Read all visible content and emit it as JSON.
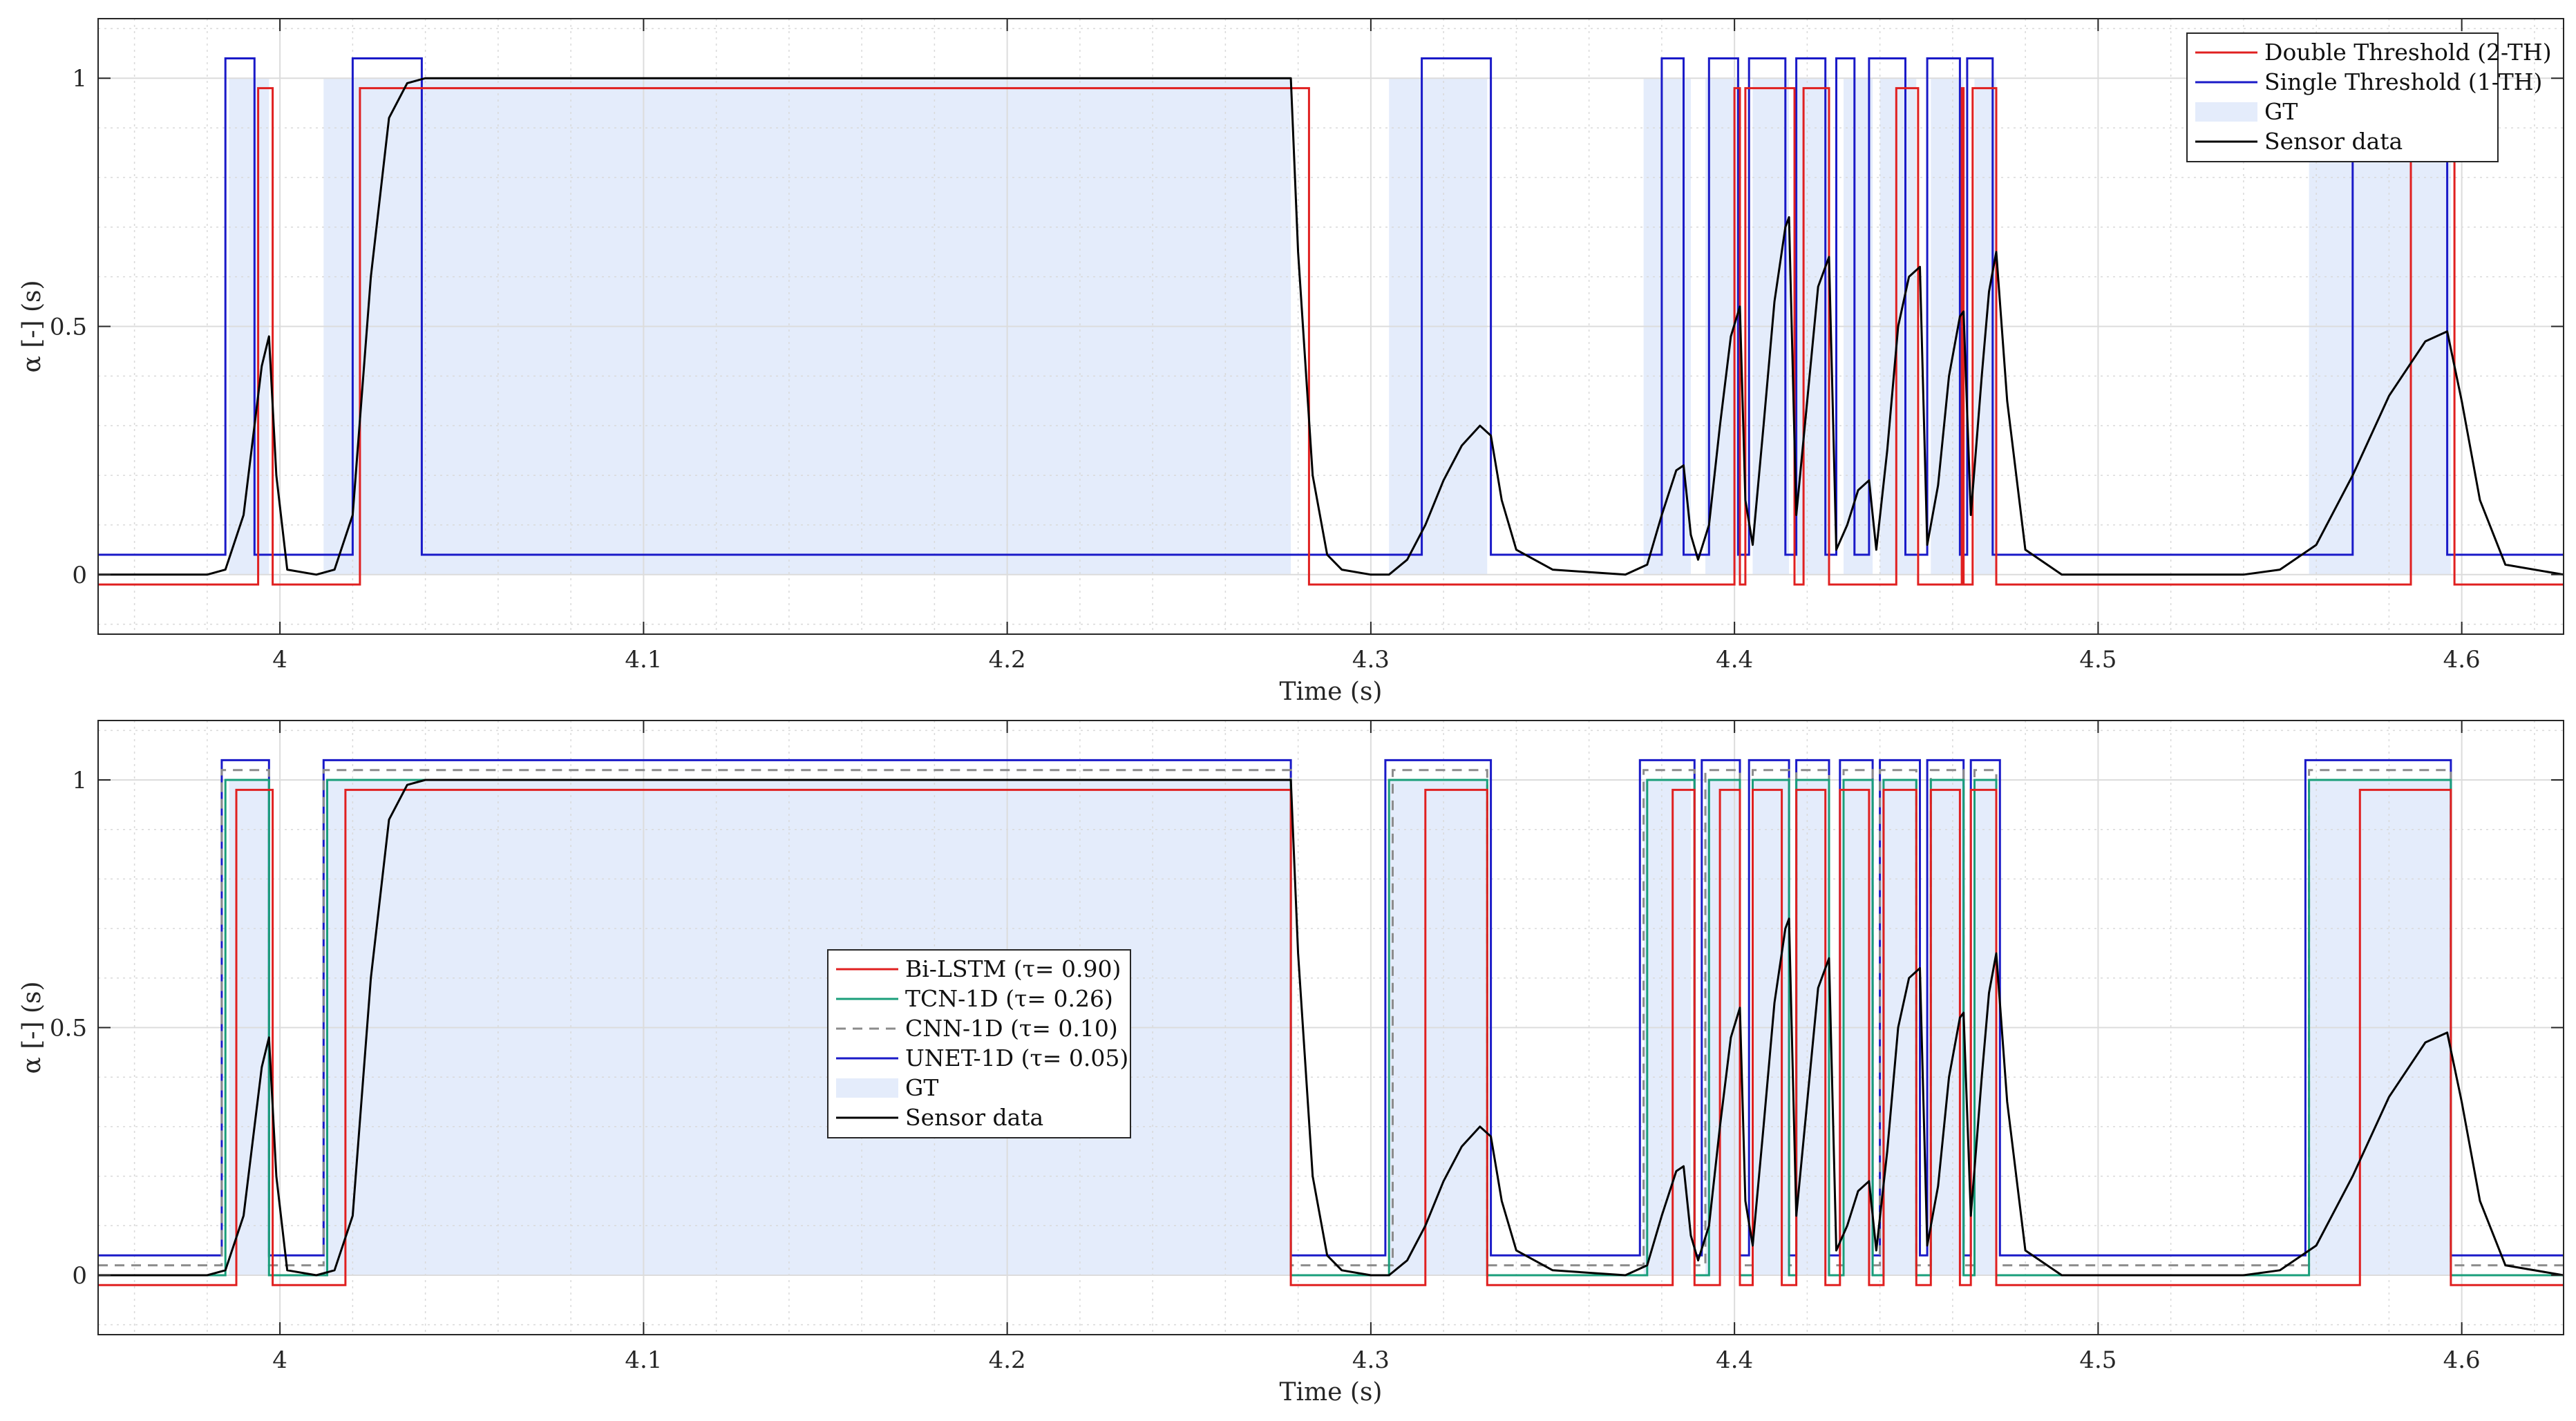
{
  "chart_data": [
    {
      "type": "line",
      "xlabel": "Time (s)",
      "ylabel": "α [-] (s)",
      "xlim": [
        3.95,
        4.628
      ],
      "ylim": [
        -0.12,
        1.12
      ],
      "xticks": [
        4.0,
        4.1,
        4.2,
        4.3,
        4.4,
        4.5,
        4.6
      ],
      "xtick_labels": [
        "4",
        "4.1",
        "4.2",
        "4.3",
        "4.4",
        "4.5",
        "4.6"
      ],
      "yticks": [
        0,
        0.5,
        1
      ],
      "ytick_labels": [
        "0",
        "0.5",
        "1"
      ],
      "grid": true,
      "legend_position": "top-right",
      "gt_regions": [
        [
          3.986,
          3.997
        ],
        [
          4.012,
          4.278
        ],
        [
          4.305,
          4.332
        ],
        [
          4.375,
          4.388
        ],
        [
          4.392,
          4.4015
        ],
        [
          4.405,
          4.415
        ],
        [
          4.417,
          4.426
        ],
        [
          4.43,
          4.438
        ],
        [
          4.44,
          4.45
        ],
        [
          4.454,
          4.463
        ],
        [
          4.466,
          4.472
        ],
        [
          4.558,
          4.597
        ]
      ],
      "series": [
        {
          "name": "Double Threshold (2-TH)",
          "color": "#e02020",
          "low": -0.02,
          "high": 0.98,
          "intervals": [
            [
              3.994,
              3.998
            ],
            [
              4.022,
              4.283
            ],
            [
              4.4,
              4.4015
            ],
            [
              4.403,
              4.4165
            ],
            [
              4.419,
              4.426
            ],
            [
              4.4445,
              4.4505
            ],
            [
              4.4625,
              4.463
            ],
            [
              4.4655,
              4.472
            ],
            [
              4.586,
              4.598
            ]
          ]
        },
        {
          "name": "Single Threshold (1-TH)",
          "color": "#1a1ac8",
          "low": 0.04,
          "high": 1.04,
          "intervals": [
            [
              3.985,
              3.993
            ],
            [
              4.02,
              4.039
            ],
            [
              4.314,
              4.333
            ],
            [
              4.38,
              4.386
            ],
            [
              4.393,
              4.401
            ],
            [
              4.404,
              4.414
            ],
            [
              4.417,
              4.425
            ],
            [
              4.428,
              4.433
            ],
            [
              4.437,
              4.447
            ],
            [
              4.453,
              4.462
            ],
            [
              4.464,
              4.471
            ],
            [
              4.57,
              4.596
            ]
          ]
        },
        {
          "name": "GT",
          "color": "#e4ecfb"
        },
        {
          "name": "Sensor data",
          "color": "#000000"
        }
      ]
    },
    {
      "type": "line",
      "xlabel": "Time (s)",
      "ylabel": "α [-] (s)",
      "xlim": [
        3.95,
        4.628
      ],
      "ylim": [
        -0.12,
        1.12
      ],
      "xticks": [
        4.0,
        4.1,
        4.2,
        4.3,
        4.4,
        4.5,
        4.6
      ],
      "xtick_labels": [
        "4",
        "4.1",
        "4.2",
        "4.3",
        "4.4",
        "4.5",
        "4.6"
      ],
      "yticks": [
        0,
        0.5,
        1
      ],
      "ytick_labels": [
        "0",
        "0.5",
        "1"
      ],
      "grid": true,
      "legend_position": "center-left",
      "gt_regions": [
        [
          3.986,
          3.997
        ],
        [
          4.012,
          4.278
        ],
        [
          4.305,
          4.332
        ],
        [
          4.375,
          4.388
        ],
        [
          4.392,
          4.4015
        ],
        [
          4.405,
          4.415
        ],
        [
          4.417,
          4.426
        ],
        [
          4.43,
          4.438
        ],
        [
          4.44,
          4.45
        ],
        [
          4.454,
          4.463
        ],
        [
          4.466,
          4.472
        ],
        [
          4.558,
          4.597
        ]
      ],
      "series": [
        {
          "name": "Bi-LSTM (τ= 0.90)",
          "color": "#e02020",
          "low": -0.02,
          "high": 0.98,
          "intervals": [
            [
              3.988,
              3.998
            ],
            [
              4.018,
              4.278
            ],
            [
              4.315,
              4.332
            ],
            [
              4.383,
              4.389
            ],
            [
              4.396,
              4.4015
            ],
            [
              4.405,
              4.413
            ],
            [
              4.417,
              4.425
            ],
            [
              4.429,
              4.437
            ],
            [
              4.441,
              4.45
            ],
            [
              4.454,
              4.462
            ],
            [
              4.465,
              4.472
            ],
            [
              4.572,
              4.597
            ]
          ]
        },
        {
          "name": "TCN-1D (τ= 0.26)",
          "color": "#1a9e7a",
          "low": 0.0,
          "high": 1.0,
          "intervals": [
            [
              3.985,
              3.997
            ],
            [
              4.013,
              4.278
            ],
            [
              4.305,
              4.332
            ],
            [
              4.376,
              4.389
            ],
            [
              4.393,
              4.4015
            ],
            [
              4.405,
              4.415
            ],
            [
              4.417,
              4.426
            ],
            [
              4.43,
              4.438
            ],
            [
              4.441,
              4.45
            ],
            [
              4.454,
              4.463
            ],
            [
              4.466,
              4.472
            ],
            [
              4.558,
              4.597
            ]
          ]
        },
        {
          "name": "CNN-1D (τ= 0.10)",
          "color": "#8c8c8c",
          "dashed": true,
          "low": 0.02,
          "high": 1.02,
          "intervals": [
            [
              3.984,
              3.997
            ],
            [
              4.012,
              4.278
            ],
            [
              4.306,
              4.332
            ],
            [
              4.375,
              4.389
            ],
            [
              4.392,
              4.4015
            ],
            [
              4.405,
              4.415
            ],
            [
              4.417,
              4.426
            ],
            [
              4.43,
              4.438
            ],
            [
              4.44,
              4.45
            ],
            [
              4.454,
              4.463
            ],
            [
              4.466,
              4.472
            ],
            [
              4.558,
              4.597
            ]
          ]
        },
        {
          "name": "UNET-1D (τ= 0.05)",
          "color": "#1a1ac8",
          "low": 0.04,
          "high": 1.04,
          "intervals": [
            [
              3.984,
              3.997
            ],
            [
              4.012,
              4.278
            ],
            [
              4.304,
              4.333
            ],
            [
              4.374,
              4.389
            ],
            [
              4.391,
              4.4015
            ],
            [
              4.404,
              4.415
            ],
            [
              4.417,
              4.426
            ],
            [
              4.429,
              4.438
            ],
            [
              4.44,
              4.451
            ],
            [
              4.453,
              4.463
            ],
            [
              4.465,
              4.473
            ],
            [
              4.557,
              4.597
            ]
          ]
        },
        {
          "name": "GT",
          "color": "#e4ecfb"
        },
        {
          "name": "Sensor data",
          "color": "#000000"
        }
      ]
    }
  ],
  "sensor_data": {
    "x": [
      3.95,
      3.98,
      3.985,
      3.99,
      3.995,
      3.997,
      3.999,
      4.002,
      4.01,
      4.015,
      4.02,
      4.025,
      4.03,
      4.035,
      4.04,
      4.27,
      4.278,
      4.28,
      4.284,
      4.288,
      4.292,
      4.3,
      4.305,
      4.31,
      4.315,
      4.32,
      4.325,
      4.33,
      4.333,
      4.336,
      4.34,
      4.35,
      4.37,
      4.376,
      4.38,
      4.384,
      4.386,
      4.388,
      4.39,
      4.393,
      4.396,
      4.399,
      4.4015,
      4.403,
      4.405,
      4.408,
      4.411,
      4.414,
      4.415,
      4.417,
      4.42,
      4.423,
      4.426,
      4.428,
      4.431,
      4.434,
      4.437,
      4.439,
      4.442,
      4.445,
      4.448,
      4.451,
      4.453,
      4.456,
      4.459,
      4.462,
      4.463,
      4.465,
      4.468,
      4.47,
      4.472,
      4.475,
      4.48,
      4.49,
      4.54,
      4.55,
      4.56,
      4.57,
      4.58,
      4.59,
      4.596,
      4.6,
      4.605,
      4.612,
      4.628
    ],
    "y": [
      0.0,
      0.0,
      0.01,
      0.12,
      0.42,
      0.48,
      0.2,
      0.01,
      0.0,
      0.01,
      0.12,
      0.6,
      0.92,
      0.99,
      1.0,
      1.0,
      1.0,
      0.65,
      0.2,
      0.04,
      0.01,
      0.0,
      0.0,
      0.03,
      0.1,
      0.19,
      0.26,
      0.3,
      0.28,
      0.15,
      0.05,
      0.01,
      0.0,
      0.02,
      0.12,
      0.21,
      0.22,
      0.08,
      0.03,
      0.1,
      0.3,
      0.48,
      0.54,
      0.15,
      0.06,
      0.3,
      0.55,
      0.7,
      0.72,
      0.12,
      0.35,
      0.58,
      0.64,
      0.05,
      0.1,
      0.17,
      0.19,
      0.05,
      0.25,
      0.5,
      0.6,
      0.62,
      0.06,
      0.18,
      0.4,
      0.52,
      0.53,
      0.12,
      0.4,
      0.57,
      0.65,
      0.35,
      0.05,
      0.0,
      0.0,
      0.01,
      0.06,
      0.2,
      0.36,
      0.47,
      0.49,
      0.35,
      0.15,
      0.02,
      0.0
    ]
  }
}
